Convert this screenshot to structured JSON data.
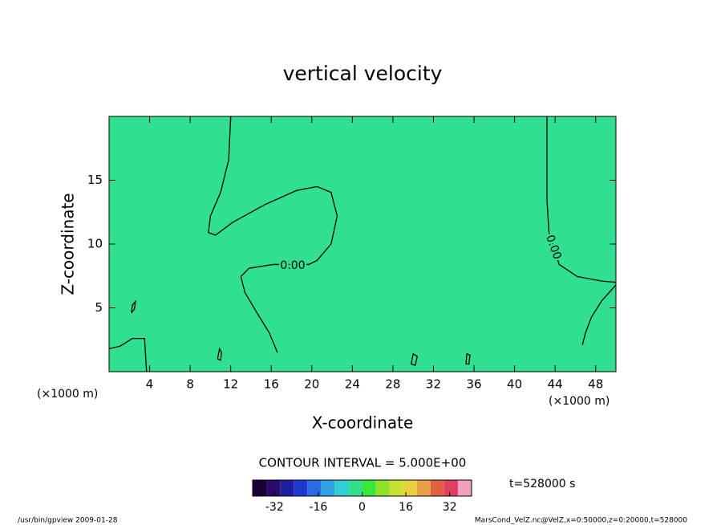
{
  "chart_data": {
    "type": "contour",
    "title": "vertical velocity",
    "xlabel": "X-coordinate",
    "ylabel": "Z-coordinate",
    "x_unit": "(×1000 m)",
    "y_unit": "(×1000 m)",
    "xlim": [
      0,
      50
    ],
    "ylim": [
      0,
      20
    ],
    "xticks": [
      4,
      8,
      12,
      16,
      20,
      24,
      28,
      32,
      36,
      40,
      44,
      48
    ],
    "yticks": [
      5,
      10,
      15
    ],
    "field": 0,
    "contours": [
      {
        "value": 0,
        "label": "0.00",
        "color": "#000000",
        "lines": [
          {
            "x": [
              12.0,
              11.8,
              11.0,
              10.0,
              9.8,
              10.5,
              12.2,
              15.4,
              18.5,
              20.5,
              21.9,
              22.5,
              21.9,
              20.5,
              19.7,
              16.2,
              13.8,
              13.0,
              13.4,
              14.6,
              15.8,
              16.3,
              16.6
            ],
            "y": [
              20,
              16.6,
              14.05,
              12.2,
              10.9,
              10.7,
              11.7,
              13.1,
              14.2,
              14.5,
              14.05,
              12.2,
              10.0,
              8.7,
              8.4,
              8.4,
              8.1,
              7.45,
              6.2,
              4.6,
              3.05,
              2.1,
              1.5
            ]
          },
          {
            "x": [
              43.2,
              43.2,
              43.4,
              44.4,
              46.2,
              48.6,
              50
            ],
            "y": [
              20,
              13.4,
              10.9,
              8.4,
              7.45,
              7.1,
              7.0
            ]
          },
          {
            "x": [
              50,
              48.6,
              47.6,
              47.0,
              46.7
            ],
            "y": [
              6.8,
              5.55,
              4.3,
              3.05,
              2.1
            ]
          },
          {
            "x": [
              0,
              1.1,
              2.3,
              3.5,
              3.7
            ],
            "y": [
              1.8,
              2.0,
              2.6,
              2.6,
              0
            ]
          },
          {
            "x": [
              2.2,
              2.5,
              2.6,
              2.3,
              2.2
            ],
            "y": [
              4.6,
              4.9,
              5.5,
              5.2,
              4.6
            ]
          },
          {
            "x": [
              10.7,
              11.0,
              11.1,
              10.9,
              10.7
            ],
            "y": [
              1.0,
              0.9,
              1.5,
              1.8,
              1.0
            ]
          },
          {
            "x": [
              29.8,
              30.2,
              30.4,
              30.0,
              29.8
            ],
            "y": [
              0.6,
              0.5,
              1.2,
              1.4,
              0.6
            ]
          },
          {
            "x": [
              35.2,
              35.5,
              35.6,
              35.3,
              35.2
            ],
            "y": [
              0.6,
              0.6,
              1.3,
              1.4,
              0.6
            ]
          }
        ]
      }
    ],
    "contour_interval": "CONTOUR INTERVAL = 5.000E+00",
    "time_label": "t=528000 s",
    "colorbar": {
      "boundaries": [
        -40,
        -35,
        -30,
        -25,
        -20,
        -15,
        -10,
        -5,
        0,
        5,
        10,
        15,
        20,
        25,
        30,
        35,
        40
      ],
      "colors": [
        "#1a0033",
        "#2a0a6a",
        "#1f1fa0",
        "#2038d0",
        "#2a6ae0",
        "#30a0e8",
        "#30d0d0",
        "#30e090",
        "#3de63d",
        "#90e030",
        "#c8e030",
        "#e8d040",
        "#e8a040",
        "#e06040",
        "#e04060",
        "#f0a0c0"
      ],
      "ticks": [
        -32,
        -16,
        0,
        16,
        32
      ]
    },
    "footer_left": "/usr/bin/gpview  2009-01-28",
    "footer_right": "MarsCond_VelZ.nc@VelZ,x=0:50000,z=0:20000,t=528000"
  }
}
